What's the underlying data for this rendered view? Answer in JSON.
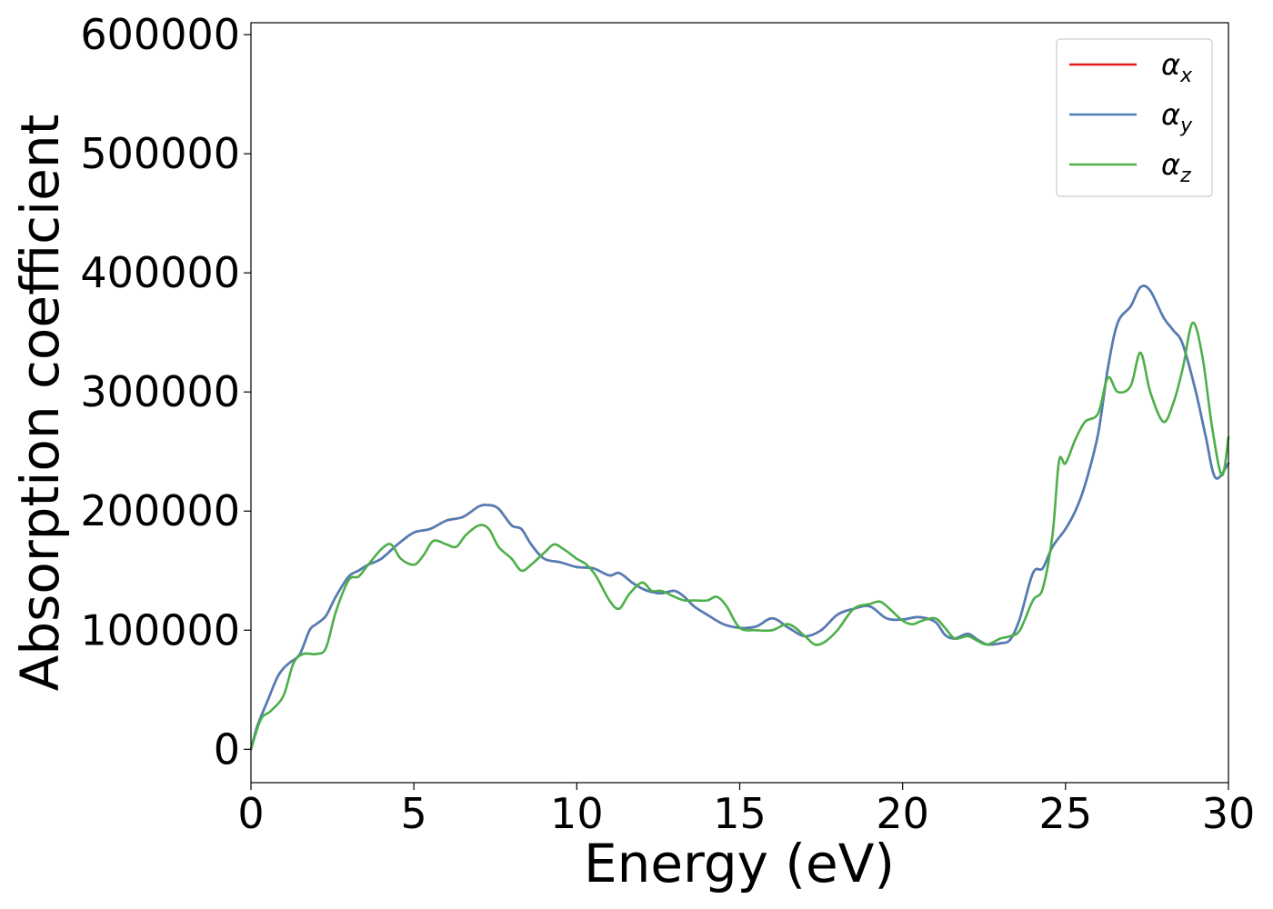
{
  "chart_data": {
    "type": "line",
    "title": "",
    "xlabel": "Energy (eV)",
    "ylabel": "Absorption coefficient",
    "xlim": [
      0,
      30
    ],
    "ylim": [
      -28000,
      610000
    ],
    "xticks": [
      0,
      5,
      10,
      15,
      20,
      25,
      30
    ],
    "xtick_labels": [
      "0",
      "5",
      "10",
      "15",
      "20",
      "25",
      "30"
    ],
    "yticks": [
      0,
      100000,
      200000,
      300000,
      400000,
      500000,
      600000
    ],
    "ytick_labels": [
      "0",
      "100000",
      "200000",
      "300000",
      "400000",
      "500000",
      "600000"
    ],
    "grid": false,
    "legend_position": "top-right",
    "series": [
      {
        "name": "α",
        "subscript": "x",
        "color": "#e41a1c",
        "x": [
          0,
          0.2,
          0.5,
          0.8,
          1.0,
          1.2,
          1.5,
          1.8,
          2.0,
          2.3,
          2.6,
          3.0,
          3.3,
          3.6,
          4.0,
          4.5,
          5.0,
          5.5,
          6.0,
          6.5,
          7.0,
          7.3,
          7.6,
          8.0,
          8.3,
          8.6,
          9.0,
          9.5,
          10.0,
          10.5,
          11.0,
          11.3,
          11.7,
          12.0,
          12.3,
          12.6,
          13.0,
          13.3,
          13.6,
          14.0,
          14.5,
          15.0,
          15.5,
          16.0,
          16.5,
          17.0,
          17.5,
          18.0,
          18.5,
          19.0,
          19.5,
          20.0,
          20.5,
          21.0,
          21.3,
          21.6,
          22.0,
          22.3,
          22.6,
          23.0,
          23.3,
          23.6,
          24.0,
          24.3,
          24.6,
          25.0,
          25.3,
          25.6,
          26.0,
          26.3,
          26.6,
          27.0,
          27.3,
          27.6,
          28.0,
          28.3,
          28.6,
          29.0,
          29.3,
          29.6,
          30.0
        ],
        "values": [
          0,
          20000,
          40000,
          60000,
          68000,
          73000,
          80000,
          100000,
          105000,
          112000,
          128000,
          145000,
          150000,
          155000,
          160000,
          172000,
          182000,
          185000,
          192000,
          195000,
          204000,
          205000,
          202000,
          188000,
          185000,
          172000,
          160000,
          157000,
          153000,
          152000,
          146000,
          148000,
          140000,
          135000,
          132000,
          131000,
          133000,
          128000,
          120000,
          113000,
          105000,
          102000,
          103000,
          110000,
          102000,
          95000,
          100000,
          113000,
          118000,
          120000,
          110000,
          109000,
          111000,
          107000,
          96000,
          93000,
          97000,
          92000,
          88000,
          89000,
          92000,
          110000,
          148000,
          152000,
          170000,
          185000,
          200000,
          222000,
          265000,
          320000,
          358000,
          372000,
          388000,
          385000,
          363000,
          352000,
          340000,
          300000,
          263000,
          228000,
          240000
        ]
      },
      {
        "name": "α",
        "subscript": "y",
        "color": "#4f7fb8",
        "x": [
          0,
          0.2,
          0.5,
          0.8,
          1.0,
          1.2,
          1.5,
          1.8,
          2.0,
          2.3,
          2.6,
          3.0,
          3.3,
          3.6,
          4.0,
          4.5,
          5.0,
          5.5,
          6.0,
          6.5,
          7.0,
          7.3,
          7.6,
          8.0,
          8.3,
          8.6,
          9.0,
          9.5,
          10.0,
          10.5,
          11.0,
          11.3,
          11.7,
          12.0,
          12.3,
          12.6,
          13.0,
          13.3,
          13.6,
          14.0,
          14.5,
          15.0,
          15.5,
          16.0,
          16.5,
          17.0,
          17.5,
          18.0,
          18.5,
          19.0,
          19.5,
          20.0,
          20.5,
          21.0,
          21.3,
          21.6,
          22.0,
          22.3,
          22.6,
          23.0,
          23.3,
          23.6,
          24.0,
          24.3,
          24.6,
          25.0,
          25.3,
          25.6,
          26.0,
          26.3,
          26.6,
          27.0,
          27.3,
          27.6,
          28.0,
          28.3,
          28.6,
          29.0,
          29.3,
          29.6,
          30.0
        ],
        "values": [
          0,
          20000,
          40000,
          60000,
          68000,
          73000,
          80000,
          100000,
          105000,
          112000,
          128000,
          145000,
          150000,
          155000,
          160000,
          172000,
          182000,
          185000,
          192000,
          195000,
          204000,
          205000,
          202000,
          188000,
          185000,
          172000,
          160000,
          157000,
          153000,
          152000,
          146000,
          148000,
          140000,
          135000,
          132000,
          131000,
          133000,
          128000,
          120000,
          113000,
          105000,
          102000,
          103000,
          110000,
          102000,
          95000,
          100000,
          113000,
          118000,
          120000,
          110000,
          109000,
          111000,
          107000,
          96000,
          93000,
          97000,
          92000,
          88000,
          89000,
          92000,
          110000,
          148000,
          152000,
          170000,
          185000,
          200000,
          222000,
          265000,
          320000,
          358000,
          372000,
          388000,
          385000,
          363000,
          352000,
          340000,
          300000,
          263000,
          228000,
          240000
        ]
      },
      {
        "name": "α",
        "subscript": "z",
        "color": "#4daf4a",
        "x": [
          0,
          0.3,
          0.6,
          1.0,
          1.3,
          1.6,
          2.0,
          2.3,
          2.6,
          3.0,
          3.3,
          3.6,
          4.0,
          4.3,
          4.6,
          5.0,
          5.3,
          5.6,
          6.0,
          6.3,
          6.6,
          7.0,
          7.3,
          7.6,
          8.0,
          8.3,
          8.6,
          9.0,
          9.3,
          9.6,
          10.0,
          10.3,
          10.6,
          11.0,
          11.3,
          11.6,
          12.0,
          12.3,
          12.6,
          13.0,
          13.3,
          13.6,
          14.0,
          14.3,
          14.6,
          15.0,
          15.5,
          16.0,
          16.5,
          17.0,
          17.3,
          17.6,
          18.0,
          18.5,
          19.0,
          19.3,
          19.6,
          20.0,
          20.3,
          20.6,
          21.0,
          21.3,
          21.6,
          22.0,
          22.3,
          22.6,
          23.0,
          23.3,
          23.6,
          24.0,
          24.3,
          24.6,
          24.8,
          25.0,
          25.3,
          25.6,
          26.0,
          26.3,
          26.6,
          27.0,
          27.3,
          27.6,
          28.0,
          28.3,
          28.6,
          28.9,
          29.2,
          29.5,
          29.8,
          30.0
        ],
        "values": [
          0,
          25000,
          32000,
          45000,
          72000,
          80000,
          80000,
          85000,
          115000,
          142000,
          145000,
          155000,
          168000,
          172000,
          160000,
          155000,
          163000,
          175000,
          172000,
          170000,
          180000,
          188000,
          185000,
          170000,
          160000,
          150000,
          155000,
          165000,
          172000,
          168000,
          160000,
          155000,
          145000,
          125000,
          118000,
          130000,
          140000,
          133000,
          133000,
          128000,
          125000,
          125000,
          125000,
          128000,
          120000,
          102000,
          100000,
          100000,
          105000,
          95000,
          88000,
          90000,
          100000,
          118000,
          122000,
          124000,
          118000,
          108000,
          105000,
          108000,
          110000,
          102000,
          93000,
          95000,
          91000,
          88000,
          93000,
          95000,
          100000,
          125000,
          135000,
          180000,
          242000,
          240000,
          260000,
          275000,
          282000,
          312000,
          300000,
          305000,
          333000,
          300000,
          275000,
          290000,
          320000,
          358000,
          330000,
          270000,
          230000,
          262000
        ]
      }
    ]
  }
}
